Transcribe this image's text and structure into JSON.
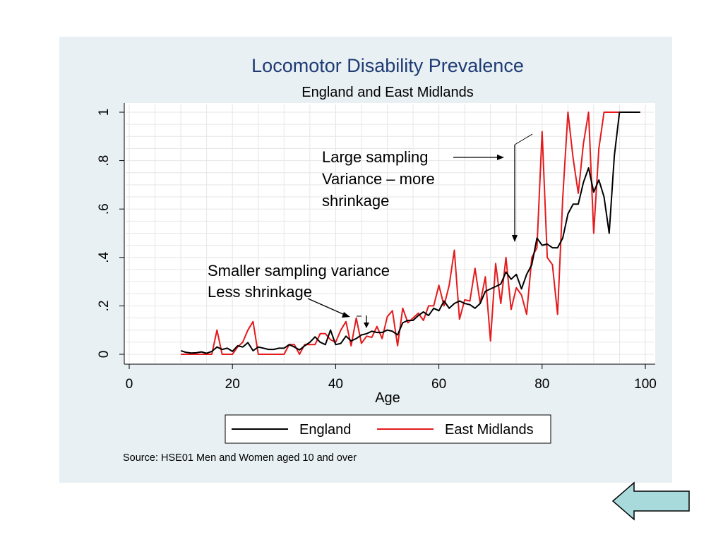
{
  "chart_data": {
    "type": "line",
    "title": "Locomotor Disability Prevalence",
    "subtitle": "England and East Midlands",
    "xlabel": "Age",
    "ylabel": "",
    "xlim": [
      0,
      100
    ],
    "ylim": [
      0,
      1
    ],
    "x_ticks": [
      0,
      20,
      40,
      60,
      80,
      100
    ],
    "x_tick_labels": [
      "0",
      "20",
      "40",
      "60",
      "80",
      "100"
    ],
    "y_ticks": [
      0,
      0.2,
      0.4,
      0.6,
      0.8,
      1
    ],
    "y_tick_labels": [
      "0",
      ".2",
      ".4",
      ".6",
      ".8",
      "1"
    ],
    "grid": true,
    "legend_position": "bottom",
    "colors": {
      "England": "#000000",
      "East Midlands": "#e41a1c"
    },
    "x": [
      10,
      11,
      12,
      13,
      14,
      15,
      16,
      17,
      18,
      19,
      20,
      21,
      22,
      23,
      24,
      25,
      26,
      27,
      28,
      29,
      30,
      31,
      32,
      33,
      34,
      35,
      36,
      37,
      38,
      39,
      40,
      41,
      42,
      43,
      44,
      45,
      46,
      47,
      48,
      49,
      50,
      51,
      52,
      53,
      54,
      55,
      56,
      57,
      58,
      59,
      60,
      61,
      62,
      63,
      64,
      65,
      66,
      67,
      68,
      69,
      70,
      71,
      72,
      73,
      74,
      75,
      76,
      77,
      78,
      79,
      80,
      81,
      82,
      83,
      84,
      85,
      86,
      87,
      88,
      89,
      90,
      91,
      92,
      93,
      94,
      95,
      96,
      97,
      98,
      99
    ],
    "series": [
      {
        "name": "England",
        "values": [
          0.015,
          0.008,
          0.005,
          0.006,
          0.01,
          0.004,
          0.012,
          0.03,
          0.02,
          0.025,
          0.012,
          0.035,
          0.03,
          0.048,
          0.015,
          0.03,
          0.025,
          0.02,
          0.02,
          0.025,
          0.025,
          0.04,
          0.03,
          0.018,
          0.035,
          0.05,
          0.072,
          0.05,
          0.04,
          0.1,
          0.04,
          0.045,
          0.075,
          0.055,
          0.065,
          0.08,
          0.085,
          0.095,
          0.09,
          0.09,
          0.1,
          0.095,
          0.08,
          0.13,
          0.14,
          0.14,
          0.16,
          0.175,
          0.16,
          0.19,
          0.18,
          0.22,
          0.19,
          0.21,
          0.22,
          0.21,
          0.205,
          0.19,
          0.21,
          0.26,
          0.27,
          0.28,
          0.29,
          0.34,
          0.31,
          0.33,
          0.27,
          0.33,
          0.37,
          0.48,
          0.45,
          0.455,
          0.44,
          0.44,
          0.48,
          0.58,
          0.62,
          0.62,
          0.71,
          0.77,
          0.67,
          0.72,
          0.65,
          0.5,
          0.82,
          1.0,
          1.0,
          1.0,
          1.0,
          1.0
        ]
      },
      {
        "name": "East Midlands",
        "values": [
          0,
          0,
          0,
          0,
          0,
          0,
          0,
          0.1,
          0,
          0,
          0,
          0.03,
          0.05,
          0.1,
          0.135,
          0,
          0,
          0,
          0,
          0,
          0,
          0.04,
          0.04,
          0,
          0.04,
          0.04,
          0.04,
          0.085,
          0.085,
          0.06,
          0.05,
          0.1,
          0.135,
          0.035,
          0.15,
          0.045,
          0.075,
          0.07,
          0.115,
          0.065,
          0.155,
          0.18,
          0.035,
          0.19,
          0.13,
          0.15,
          0.17,
          0.14,
          0.2,
          0.2,
          0.285,
          0.2,
          0.285,
          0.43,
          0.145,
          0.225,
          0.22,
          0.355,
          0.21,
          0.32,
          0.055,
          0.375,
          0.21,
          0.4,
          0.185,
          0.275,
          0.245,
          0.165,
          0.4,
          0.44,
          0.92,
          0.4,
          0.37,
          0.165,
          0.645,
          1.0,
          0.81,
          0.665,
          0.87,
          1.0,
          0.5,
          0.85,
          1.0,
          1.0,
          1.0,
          1.0,
          1.0,
          1.0,
          1.0,
          1.0
        ]
      }
    ],
    "annotations": [
      {
        "lines": [
          "Large sampling",
          "Variance – more",
          "shrinkage"
        ]
      },
      {
        "lines": [
          "Smaller sampling variance",
          "Less shrinkage"
        ]
      }
    ],
    "source_note": "Source: HSE01 Men and Women aged 10 and over"
  },
  "nav": {
    "back_icon_color": "#a8dadc"
  }
}
